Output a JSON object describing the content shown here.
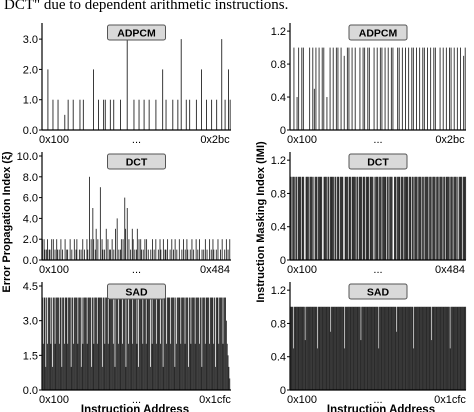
{
  "header_text": "DCT\" due to dependent arithmetic instructions.",
  "y_labels": {
    "left": "Error Propagation Index (ξ)",
    "right": "Instruction Masking Index (IMI)"
  },
  "x_label": "Instruction Address",
  "chart_data": [
    {
      "type": "bar",
      "title": "ADPCM",
      "xlabel": "",
      "ylabel": "Error Propagation Index (ξ)",
      "x_ticks": [
        "0x100",
        "...",
        "0x2bc"
      ],
      "y_ticks": [
        "0.0",
        "1.0",
        "2.0",
        "3.0"
      ],
      "ylim": [
        0,
        3.4
      ],
      "n": 112,
      "values": [
        0,
        0,
        0,
        2,
        0,
        0,
        1,
        0,
        0,
        1,
        0,
        0,
        0,
        0.5,
        0,
        1,
        0,
        0,
        1,
        0,
        0,
        0,
        1,
        0,
        1,
        0,
        0,
        0,
        0,
        0,
        2,
        0,
        0,
        1,
        0,
        0,
        1,
        1,
        0,
        0,
        1,
        0,
        1,
        0,
        0,
        0,
        1,
        0,
        0,
        0,
        3,
        0,
        0,
        0,
        1,
        0,
        0,
        1,
        0,
        0,
        1,
        0,
        0,
        1,
        0,
        0,
        0,
        1,
        0,
        0,
        0,
        2,
        0,
        1,
        0,
        0,
        0,
        1,
        0,
        0,
        1,
        0,
        3,
        0,
        0,
        1,
        0,
        1,
        0,
        0,
        0,
        1,
        0,
        0,
        2,
        0,
        0,
        1,
        0,
        0,
        1,
        0,
        0,
        1,
        0,
        0,
        3,
        0,
        1,
        0,
        2,
        1
      ]
    },
    {
      "type": "bar",
      "title": "ADPCM",
      "xlabel": "",
      "ylabel": "Instruction Masking Index (IMI)",
      "x_ticks": [
        "0x100",
        "...",
        "0x2bc"
      ],
      "y_ticks": [
        "0",
        "0.4",
        "0.8",
        "1.2"
      ],
      "ylim": [
        0,
        1.25
      ],
      "n": 112,
      "values": [
        0,
        0,
        1,
        0,
        0.4,
        1,
        0,
        1,
        1,
        0,
        0,
        0,
        1,
        0,
        1,
        0.5,
        1,
        0,
        1,
        0,
        1,
        1,
        0,
        0.4,
        0,
        1,
        0,
        1,
        0,
        1,
        1,
        0,
        1,
        0,
        0.9,
        0,
        1,
        1,
        0,
        1,
        0,
        1,
        0,
        0,
        1,
        0,
        1,
        1,
        0,
        1,
        1,
        0,
        0,
        1,
        0,
        1,
        0,
        1,
        1,
        0,
        1,
        0,
        1,
        0,
        1,
        1,
        0,
        0,
        1,
        1,
        0,
        1,
        0,
        1,
        0,
        1,
        0,
        1,
        1,
        0,
        1,
        0,
        1,
        0,
        1,
        1,
        0,
        1,
        0,
        1,
        0,
        1,
        1,
        0,
        0,
        1,
        0,
        1,
        0,
        1,
        0,
        1,
        1,
        0,
        1,
        0,
        1,
        0,
        1,
        0,
        0.9,
        1
      ]
    },
    {
      "type": "bar",
      "title": "DCT",
      "xlabel": "",
      "ylabel": "Error Propagation Index (ξ)",
      "x_ticks": [
        "0x100",
        "...",
        "0x484"
      ],
      "y_ticks": [
        "0.0",
        "2.0",
        "4.0",
        "6.0",
        "8.0",
        "10.0"
      ],
      "ylim": [
        0,
        10
      ],
      "n": 225,
      "values": [
        2,
        0,
        2,
        1,
        0,
        1,
        2,
        0,
        1,
        1,
        0,
        2,
        0,
        2,
        0,
        1,
        0,
        2,
        1,
        0,
        1,
        0,
        2,
        0,
        1,
        0,
        0,
        2,
        0,
        1,
        1,
        0,
        0,
        2,
        0,
        1,
        0,
        0,
        2,
        0,
        1,
        2,
        0,
        0,
        1,
        0,
        1,
        0,
        2,
        0,
        1,
        0,
        0,
        2,
        1,
        0,
        8,
        0,
        2,
        0,
        5,
        2,
        0,
        1,
        3,
        0,
        2,
        0,
        0,
        7,
        0,
        2,
        1,
        0,
        1,
        0,
        3,
        0,
        2,
        0,
        1,
        1,
        0,
        2,
        0,
        1,
        0,
        3,
        0,
        4,
        0,
        1,
        0,
        1,
        2,
        0,
        2,
        0,
        6,
        3,
        0,
        5,
        0,
        2,
        0,
        1,
        0,
        3,
        2,
        0,
        1,
        0,
        1,
        3,
        0,
        2,
        0,
        2,
        1,
        0,
        1,
        0,
        2,
        0,
        2,
        0,
        1,
        0,
        0,
        1,
        0,
        2,
        0,
        1,
        0,
        2,
        0,
        0,
        1,
        0,
        2,
        1,
        0,
        0,
        2,
        0,
        1,
        1,
        0,
        2,
        0,
        0,
        1,
        0,
        2,
        0,
        1,
        0,
        2,
        0,
        1,
        0,
        0,
        2,
        0,
        0,
        1,
        0,
        2,
        0,
        1,
        0,
        2,
        1,
        0,
        0,
        1,
        0,
        2,
        0,
        1,
        0,
        0,
        2,
        0,
        1,
        0,
        2,
        0,
        0,
        1,
        0,
        1,
        0,
        2,
        0,
        1,
        0,
        0,
        2,
        0,
        1,
        0,
        2,
        1,
        0,
        0,
        1,
        0,
        2,
        0,
        0,
        1,
        0,
        2,
        0,
        0,
        1,
        0,
        2,
        0,
        1,
        0,
        2,
        0
      ]
    },
    {
      "type": "bar",
      "title": "DCT",
      "xlabel": "",
      "ylabel": "Instruction Masking Index (IMI)",
      "x_ticks": [
        "0x100",
        "...",
        "0x484"
      ],
      "y_ticks": [
        "0",
        "0.4",
        "0.8",
        "1.2"
      ],
      "ylim": [
        0,
        1.25
      ],
      "n": 225,
      "values": [
        1,
        1,
        0,
        1,
        1,
        1,
        0,
        1,
        1,
        0,
        1,
        1,
        1,
        1,
        0,
        1,
        1,
        1,
        0,
        0,
        1,
        1,
        1,
        1,
        0,
        1,
        1,
        1,
        1,
        0,
        1,
        0,
        1,
        1,
        1,
        0,
        1,
        1,
        1,
        1,
        1,
        0,
        0,
        1,
        1,
        1,
        1,
        0,
        1,
        1,
        0,
        1,
        1,
        1,
        1,
        1,
        0,
        1,
        1,
        0,
        1,
        1,
        1,
        0,
        1,
        1,
        1,
        1,
        0,
        0,
        1,
        1,
        1,
        1,
        0,
        1,
        1,
        1,
        0,
        1,
        1,
        1,
        1,
        1,
        0,
        1,
        1,
        0,
        1,
        1,
        1,
        1,
        0,
        1,
        1,
        1,
        0,
        1,
        1,
        1,
        1,
        0,
        1,
        1,
        1,
        1,
        0,
        1,
        0,
        1,
        1,
        1,
        1,
        0,
        1,
        1,
        1,
        0,
        1,
        1,
        1,
        1,
        1,
        0,
        1,
        1,
        0,
        1,
        1,
        1,
        1,
        0,
        0,
        1,
        1,
        1,
        0,
        1,
        1,
        1,
        1,
        0,
        1,
        1,
        1,
        0,
        1,
        1,
        1,
        1,
        1,
        0,
        1,
        1,
        1,
        0,
        1,
        1,
        0,
        1,
        1,
        1,
        1,
        0,
        1,
        1,
        1,
        1,
        0,
        1,
        1,
        0,
        1,
        1,
        1,
        1,
        1,
        0,
        1,
        1,
        1,
        0,
        1,
        1,
        1,
        1,
        0,
        1,
        1,
        1,
        0,
        1,
        1,
        1,
        1,
        0,
        1,
        1,
        0,
        1,
        1,
        1,
        1,
        1,
        0,
        1,
        1,
        1,
        0,
        1,
        1,
        1,
        1,
        0,
        1,
        0,
        1,
        1,
        1,
        1,
        0,
        1,
        1,
        1,
        1
      ]
    },
    {
      "type": "bar",
      "title": "SAD",
      "xlabel": "Instruction Address",
      "ylabel": "Error Propagation Index (ξ)",
      "x_ticks": [
        "0x100",
        "...",
        "0x1cfc"
      ],
      "y_ticks": [
        "0.0",
        "1.5",
        "3.0",
        "4.5"
      ],
      "ylim": [
        0,
        4.5
      ],
      "n": 220,
      "values": [
        4,
        2,
        4,
        4,
        1,
        4,
        2,
        4,
        4,
        4,
        2,
        4,
        1,
        4,
        4,
        2,
        4,
        4,
        4,
        4,
        2,
        4,
        4,
        1,
        4,
        4,
        2,
        4,
        4,
        4,
        2,
        4,
        4,
        4,
        1,
        4,
        4,
        2,
        4,
        4,
        4,
        4,
        2,
        4,
        4,
        4,
        1,
        4,
        2,
        4,
        4,
        4,
        4,
        2,
        4,
        4,
        4,
        4,
        1,
        4,
        4,
        2,
        4,
        4,
        4,
        2,
        4,
        4,
        4,
        4,
        4,
        1,
        4,
        4,
        2,
        4,
        4,
        4,
        2,
        4,
        4,
        4,
        4,
        4,
        2,
        4,
        1,
        4,
        4,
        4,
        2,
        4,
        4,
        4,
        4,
        2,
        4,
        4,
        4,
        1,
        4,
        4,
        2,
        4,
        4,
        4,
        4,
        2,
        4,
        4,
        4,
        4,
        2,
        4,
        1,
        4,
        4,
        4,
        4,
        2,
        4,
        4,
        4,
        2,
        4,
        4,
        4,
        4,
        1,
        4,
        2,
        4,
        4,
        4,
        4,
        2,
        4,
        4,
        4,
        4,
        2,
        4,
        4,
        1,
        4,
        4,
        4,
        2,
        4,
        4,
        4,
        4,
        2,
        4,
        4,
        4,
        4,
        1,
        4,
        2,
        4,
        4,
        4,
        4,
        2,
        4,
        4,
        4,
        4,
        2,
        4,
        4,
        4,
        1,
        4,
        4,
        2,
        4,
        4,
        4,
        4,
        2,
        4,
        4,
        4,
        4,
        2,
        4,
        4,
        1,
        4,
        4,
        4,
        2,
        4,
        4,
        4,
        4,
        2,
        4,
        4,
        4,
        4,
        2,
        4,
        1,
        4,
        4,
        4,
        2,
        4,
        4,
        4,
        4,
        2,
        4,
        4,
        4,
        3,
        2,
        1.5,
        1,
        0.5,
        0
      ]
    },
    {
      "type": "bar",
      "title": "SAD",
      "xlabel": "Instruction Address",
      "ylabel": "Instruction Masking Index (IMI)",
      "x_ticks": [
        "0x100",
        "...",
        "0x1cfc"
      ],
      "y_ticks": [
        "0",
        "0.4",
        "0.8",
        "1.2"
      ],
      "ylim": [
        0,
        1.25
      ],
      "n": 220,
      "values": [
        1,
        1,
        1,
        1,
        0.5,
        1,
        1,
        1,
        1,
        1,
        1,
        1,
        1,
        1,
        1,
        1,
        1,
        1,
        1,
        0.6,
        1,
        1,
        1,
        1,
        1,
        1,
        1,
        1,
        1,
        1,
        1,
        1,
        1,
        1,
        1,
        0.5,
        1,
        1,
        1,
        1,
        1,
        1,
        1,
        1,
        1,
        1,
        1,
        1,
        1,
        1,
        1,
        1,
        0.7,
        1,
        1,
        1,
        1,
        1,
        1,
        1,
        1,
        1,
        1,
        1,
        1,
        1,
        1,
        1,
        1,
        1,
        0.5,
        1,
        1,
        1,
        1,
        1,
        1,
        1,
        1,
        1,
        1,
        1,
        1,
        1,
        1,
        1,
        1,
        1,
        1,
        1,
        1,
        0.6,
        1,
        1,
        1,
        1,
        1,
        1,
        1,
        1,
        1,
        1,
        1,
        1,
        1,
        1,
        1,
        1,
        1,
        1,
        1,
        1,
        1,
        1,
        0.5,
        1,
        1,
        1,
        1,
        1,
        1,
        1,
        1,
        1,
        1,
        1,
        1,
        1,
        1,
        1,
        1,
        1,
        1,
        1,
        1,
        1,
        1,
        0.7,
        1,
        1,
        1,
        1,
        1,
        1,
        1,
        1,
        1,
        1,
        1,
        1,
        1,
        1,
        1,
        1,
        1,
        1,
        1,
        1,
        1,
        0.5,
        1,
        1,
        1,
        1,
        1,
        1,
        1,
        1,
        1,
        1,
        1,
        1,
        1,
        1,
        1,
        1,
        1,
        1,
        1,
        1,
        1,
        1,
        0.6,
        1,
        1,
        1,
        1,
        1,
        1,
        1,
        1,
        1,
        1,
        1,
        1,
        1,
        1,
        1,
        1,
        1,
        1,
        1,
        1,
        1,
        1,
        1,
        0.5,
        1,
        1,
        1,
        1,
        1,
        1,
        1,
        1,
        1,
        1,
        1,
        1,
        1,
        1,
        1,
        1,
        1,
        1,
        1,
        1
      ]
    }
  ]
}
